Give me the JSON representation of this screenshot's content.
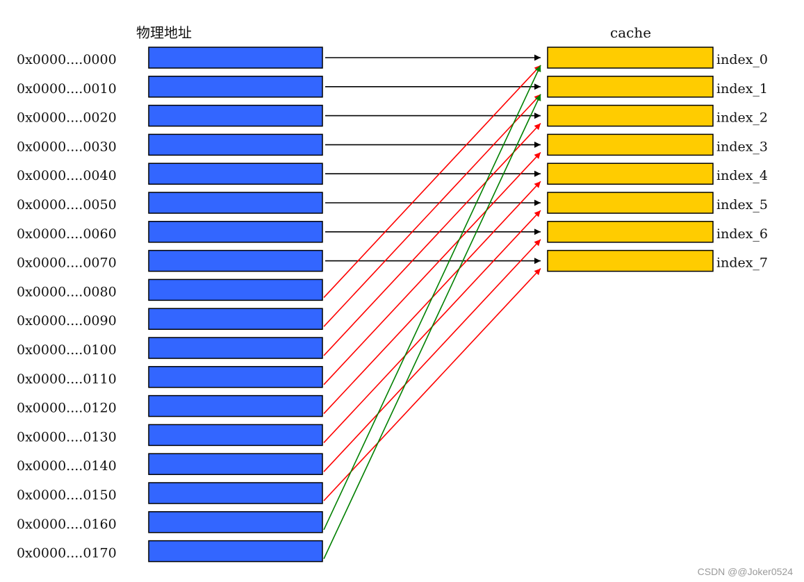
{
  "memory_title": "物理地址",
  "cache_title": "cache",
  "addresses": [
    "0x0000....0000",
    "0x0000....0010",
    "0x0000....0020",
    "0x0000....0030",
    "0x0000....0040",
    "0x0000....0050",
    "0x0000....0060",
    "0x0000....0070",
    "0x0000....0080",
    "0x0000....0090",
    "0x0000....0100",
    "0x0000....0110",
    "0x0000....0120",
    "0x0000....0130",
    "0x0000....0140",
    "0x0000....0150",
    "0x0000....0160",
    "0x0000....0170"
  ],
  "cache_lines": [
    "index_0",
    "index_1",
    "index_2",
    "index_3",
    "index_4",
    "index_5",
    "index_6",
    "index_7"
  ],
  "mappings": [
    {
      "from": 0,
      "to": 0,
      "color": "#000000"
    },
    {
      "from": 1,
      "to": 1,
      "color": "#000000"
    },
    {
      "from": 2,
      "to": 2,
      "color": "#000000"
    },
    {
      "from": 3,
      "to": 3,
      "color": "#000000"
    },
    {
      "from": 4,
      "to": 4,
      "color": "#000000"
    },
    {
      "from": 5,
      "to": 5,
      "color": "#000000"
    },
    {
      "from": 6,
      "to": 6,
      "color": "#000000"
    },
    {
      "from": 7,
      "to": 7,
      "color": "#000000"
    },
    {
      "from": 8,
      "to": 0,
      "color": "#ff0000"
    },
    {
      "from": 9,
      "to": 1,
      "color": "#ff0000"
    },
    {
      "from": 10,
      "to": 2,
      "color": "#ff0000"
    },
    {
      "from": 11,
      "to": 3,
      "color": "#ff0000"
    },
    {
      "from": 12,
      "to": 4,
      "color": "#ff0000"
    },
    {
      "from": 13,
      "to": 5,
      "color": "#ff0000"
    },
    {
      "from": 14,
      "to": 6,
      "color": "#ff0000"
    },
    {
      "from": 15,
      "to": 7,
      "color": "#ff0000"
    },
    {
      "from": 16,
      "to": 0,
      "color": "#008000"
    },
    {
      "from": 17,
      "to": 1,
      "color": "#008000"
    }
  ],
  "colors": {
    "memory_block": "#3366ff",
    "cache_block": "#ffcc00",
    "outline": "#000000"
  },
  "watermark": "CSDN @@Joker0524"
}
